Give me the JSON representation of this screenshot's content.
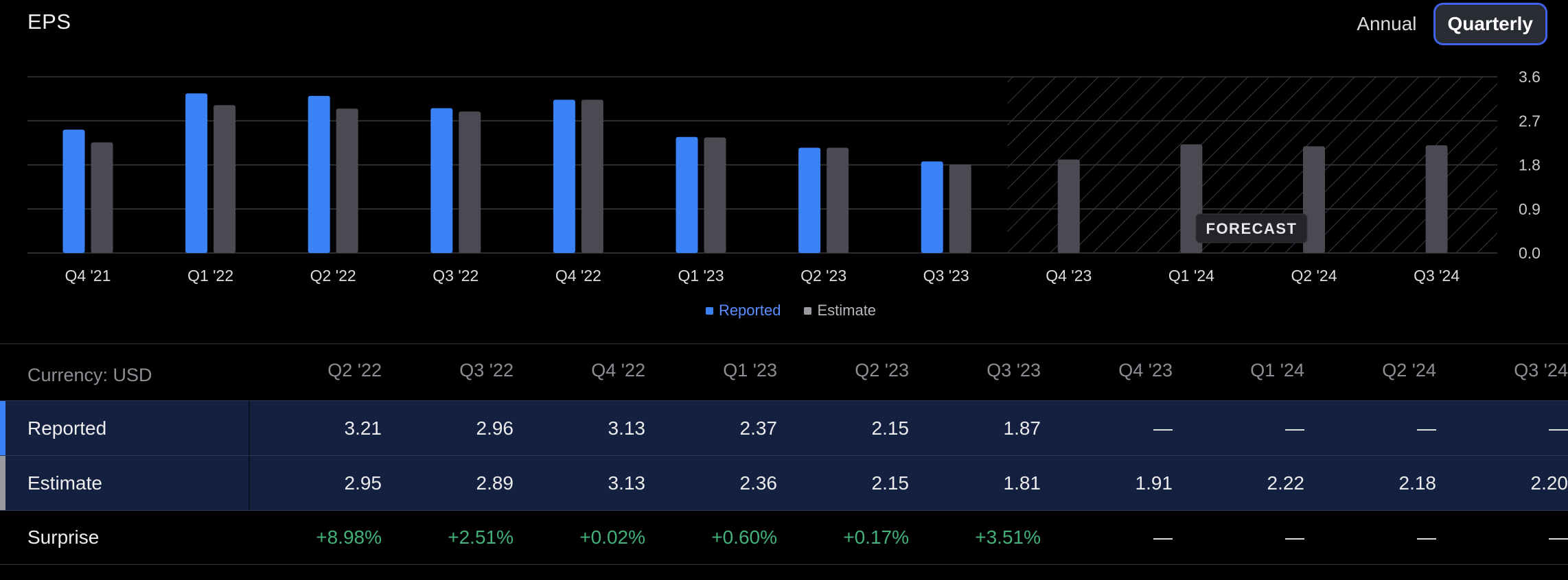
{
  "header": {
    "title": "EPS",
    "toggle": {
      "annual_label": "Annual",
      "quarterly_label": "Quarterly",
      "selected": "Quarterly"
    }
  },
  "colors": {
    "reported": "#3b82f6",
    "estimate": "#4a4b52",
    "surprise_positive": "#45b07a",
    "toggle_border": "#3f62e8"
  },
  "chart_data": {
    "type": "bar",
    "title": "EPS",
    "categories": [
      "Q4 '21",
      "Q1 '22",
      "Q2 '22",
      "Q3 '22",
      "Q4 '22",
      "Q1 '23",
      "Q2 '23",
      "Q3 '23",
      "Q4 '23",
      "Q1 '24",
      "Q2 '24",
      "Q3 '24"
    ],
    "series": [
      {
        "name": "Reported",
        "values": [
          2.52,
          3.26,
          3.21,
          2.96,
          3.13,
          2.37,
          2.15,
          1.87,
          null,
          null,
          null,
          null
        ]
      },
      {
        "name": "Estimate",
        "values": [
          2.26,
          3.02,
          2.95,
          2.89,
          3.13,
          2.36,
          2.15,
          1.81,
          1.91,
          2.22,
          2.18,
          2.2
        ]
      }
    ],
    "ylim": [
      0,
      3.6
    ],
    "yticks": [
      "3.6",
      "2.7",
      "1.8",
      "0.9",
      "0.0"
    ],
    "grid": true,
    "forecast_label": "FORECAST",
    "forecast_start_index": 8,
    "legend": [
      "Reported",
      "Estimate"
    ]
  },
  "table": {
    "currency_label": "Currency: USD",
    "columns": [
      "Q2 '22",
      "Q3 '22",
      "Q4 '22",
      "Q1 '23",
      "Q2 '23",
      "Q3 '23",
      "Q4 '23",
      "Q1 '24",
      "Q2 '24",
      "Q3 '24"
    ],
    "rows": [
      {
        "label": "Reported",
        "values": [
          "3.21",
          "2.96",
          "3.13",
          "2.37",
          "2.15",
          "1.87",
          "—",
          "—",
          "—",
          "—"
        ]
      },
      {
        "label": "Estimate",
        "values": [
          "2.95",
          "2.89",
          "3.13",
          "2.36",
          "2.15",
          "1.81",
          "1.91",
          "2.22",
          "2.18",
          "2.20"
        ]
      },
      {
        "label": "Surprise",
        "values": [
          "+8.98%",
          "+2.51%",
          "+0.02%",
          "+0.60%",
          "+0.17%",
          "+3.51%",
          "—",
          "—",
          "—",
          "—"
        ]
      }
    ]
  }
}
